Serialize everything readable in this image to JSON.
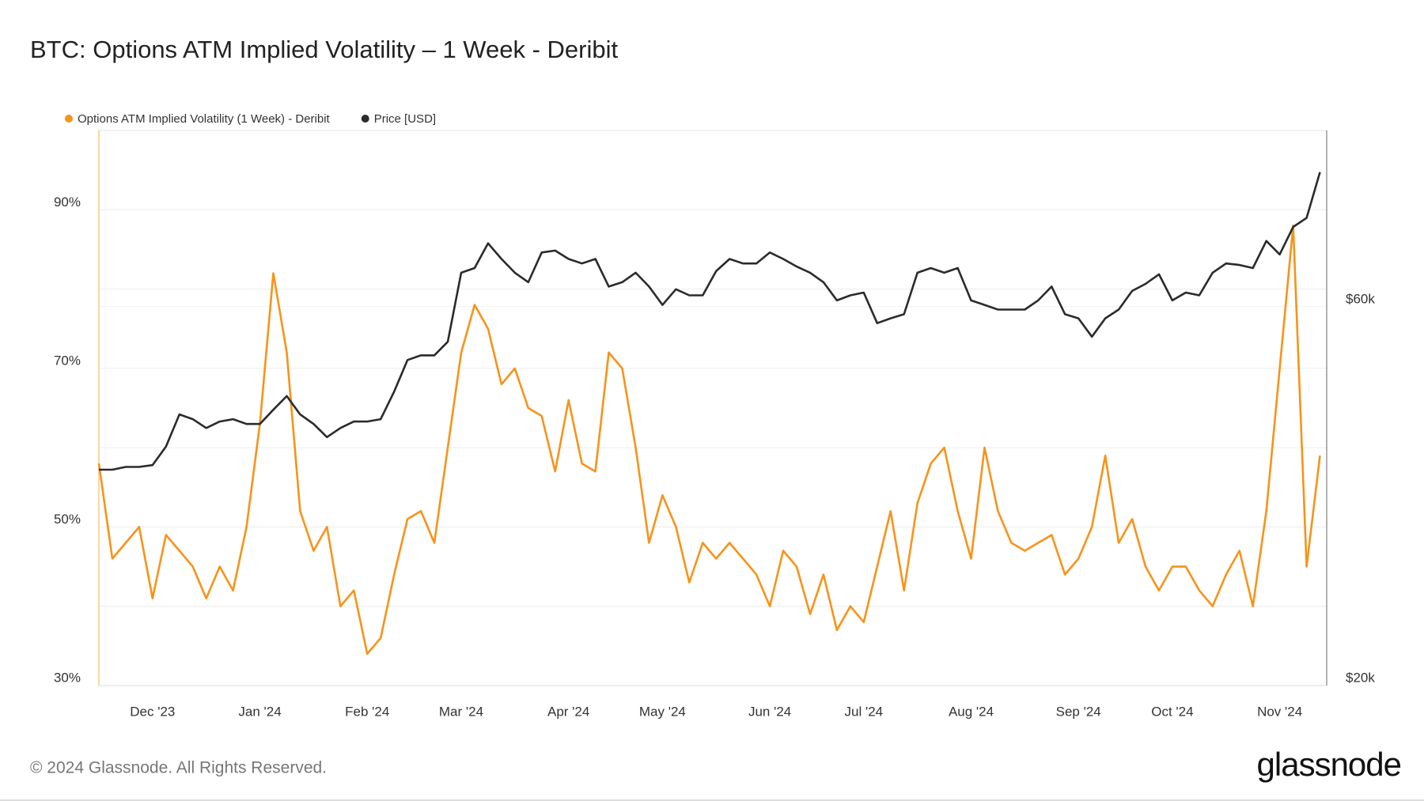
{
  "chart_data": {
    "type": "line",
    "title": "BTC: Options ATM Implied Volatility – 1 Week - Deribit",
    "copyright": "© 2024 Glassnode. All Rights Reserved.",
    "logo": "glassnode",
    "categories": [
      null,
      null,
      null,
      null,
      "Dec '23",
      null,
      null,
      null,
      null,
      null,
      null,
      null,
      "Jan '24",
      null,
      null,
      null,
      null,
      null,
      null,
      null,
      "Feb '24",
      null,
      null,
      null,
      null,
      null,
      null,
      "Mar '24",
      null,
      null,
      null,
      null,
      null,
      null,
      null,
      "Apr '24",
      null,
      null,
      null,
      null,
      null,
      null,
      "May '24",
      null,
      null,
      null,
      null,
      null,
      null,
      null,
      "Jun '24",
      null,
      null,
      null,
      null,
      null,
      null,
      "Jul '24",
      null,
      null,
      null,
      null,
      null,
      null,
      null,
      "Aug '24",
      null,
      null,
      null,
      null,
      null,
      null,
      null,
      "Sep '24",
      null,
      null,
      null,
      null,
      null,
      null,
      "Oct '24",
      null,
      null,
      null,
      null,
      null,
      null,
      null,
      "Nov '24",
      null,
      null,
      null
    ],
    "series": [
      {
        "name": "Options ATM Implied Volatility (1 Week) - Deribit",
        "color": "#f7931a",
        "axis": "y",
        "values": [
          58,
          46,
          48,
          50,
          41,
          49,
          47,
          45,
          41,
          45,
          42,
          50,
          63,
          82,
          72,
          52,
          47,
          50,
          40,
          42,
          34,
          36,
          44,
          51,
          52,
          48,
          60,
          72,
          78,
          75,
          68,
          70,
          65,
          64,
          57,
          66,
          58,
          57,
          72,
          70,
          60,
          48,
          54,
          50,
          43,
          48,
          46,
          48,
          46,
          44,
          40,
          47,
          45,
          39,
          44,
          37,
          40,
          38,
          45,
          52,
          42,
          53,
          58,
          60,
          52,
          46,
          60,
          52,
          48,
          47,
          48,
          49,
          44,
          46,
          50,
          59,
          48,
          51,
          45,
          42,
          45,
          45,
          42,
          40,
          44,
          47,
          40,
          52,
          70,
          88,
          45,
          59
        ]
      },
      {
        "name": "Price [USD]",
        "color": "#2b2b2b",
        "axis": "y2",
        "values": [
          37400,
          37400,
          37700,
          37700,
          37900,
          40000,
          43900,
          43300,
          42200,
          43000,
          43300,
          42700,
          42700,
          44500,
          46300,
          43900,
          42700,
          41100,
          42200,
          43000,
          43000,
          43300,
          46900,
          51400,
          52100,
          52100,
          54200,
          66200,
          67100,
          72100,
          68900,
          66200,
          64400,
          70200,
          70600,
          68900,
          68000,
          68900,
          63600,
          64400,
          66200,
          63600,
          60300,
          63100,
          62000,
          62000,
          66500,
          68900,
          68000,
          68000,
          70200,
          68900,
          67400,
          66200,
          64400,
          61100,
          62000,
          62500,
          57200,
          58000,
          58700,
          66200,
          67100,
          66200,
          67100,
          61100,
          60300,
          59500,
          59500,
          59500,
          61100,
          63600,
          58700,
          58000,
          55000,
          58000,
          59500,
          62800,
          64100,
          65900,
          61100,
          62500,
          62000,
          66200,
          68000,
          67700,
          67100,
          72600,
          69800,
          75600,
          77600,
          88600
        ]
      }
    ],
    "ylim": [
      30,
      100
    ],
    "yticks": [
      {
        "value": 30,
        "label": "30%"
      },
      {
        "value": 50,
        "label": "50%"
      },
      {
        "value": 70,
        "label": "70%"
      },
      {
        "value": 90,
        "label": "90%"
      }
    ],
    "yminor": [
      40,
      60,
      80
    ],
    "y2lim": [
      20000,
      100000
    ],
    "y2log": true,
    "y2ticks": [
      {
        "value": 20000,
        "label": "$20k"
      },
      {
        "value": 60000,
        "label": "$60k"
      }
    ],
    "grid": true,
    "legend": "top-left"
  }
}
